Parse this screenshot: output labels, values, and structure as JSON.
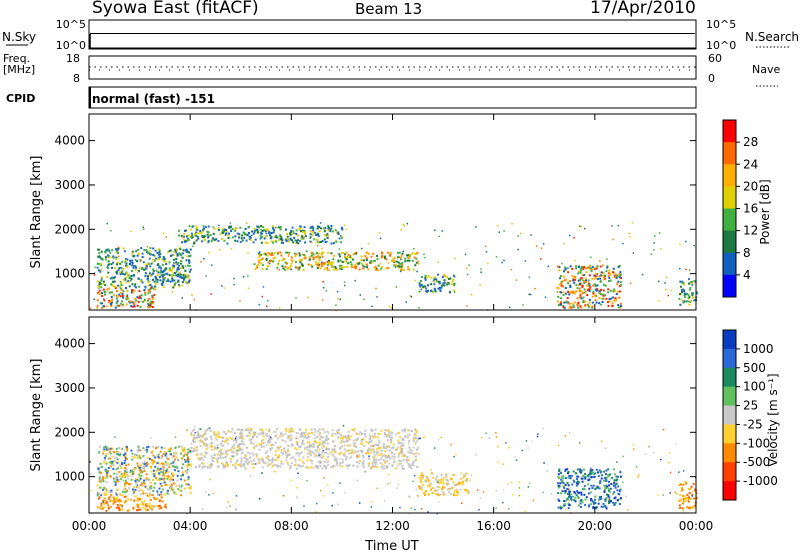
{
  "header": {
    "station": "Syowa East (fitACF)",
    "beam": "Beam 13",
    "date": "17/Apr/2010"
  },
  "strips": {
    "nsky_label": "N.Sky",
    "nsky_ticks": [
      "10^5",
      "10^0"
    ],
    "nsearch_label": "N.Search",
    "nsearch_ticks": [
      "10^5",
      "10^0"
    ],
    "freq_label_1": "Freq.",
    "freq_label_2": "[MHz]",
    "freq_ticks": [
      "18",
      "8"
    ],
    "nave_label": "Nave",
    "nave_ticks": [
      "60",
      "0"
    ],
    "cpid_label": "CPID",
    "cpid_value": "normal (fast) -151"
  },
  "chart_data": [
    {
      "type": "heatmap",
      "parameter": "Power",
      "ylabel": "Slant Range [km]",
      "yticks": [
        "4000",
        "3000",
        "2000",
        "1000"
      ],
      "ylim": [
        180,
        4600
      ],
      "colorbar_label": "Power [dB]",
      "colorbar_ticks": [
        "28",
        "24",
        "20",
        "16",
        "12",
        "8",
        "4"
      ],
      "colorbar_colors": [
        "#ff0000",
        "#ff6a00",
        "#ffb000",
        "#e0d000",
        "#40b040",
        "#1a7a40",
        "#1060c0",
        "#0000ff"
      ],
      "echo_regions": [
        {
          "t": [
            0.3,
            2.6
          ],
          "r": [
            250,
            700
          ],
          "level": "high"
        },
        {
          "t": [
            0.3,
            4.0
          ],
          "r": [
            700,
            1600
          ],
          "level": "mid"
        },
        {
          "t": [
            3.5,
            10.0
          ],
          "r": [
            1700,
            2100
          ],
          "level": "mid"
        },
        {
          "t": [
            6.5,
            13.0
          ],
          "r": [
            1100,
            1500
          ],
          "level": "mid-high"
        },
        {
          "t": [
            13.0,
            14.5
          ],
          "r": [
            600,
            1000
          ],
          "level": "mid"
        },
        {
          "t": [
            18.5,
            21.0
          ],
          "r": [
            250,
            1200
          ],
          "level": "high"
        },
        {
          "t": [
            23.3,
            24.0
          ],
          "r": [
            300,
            900
          ],
          "level": "mid"
        }
      ]
    },
    {
      "type": "heatmap",
      "parameter": "Velocity",
      "ylabel": "Slant Range [km]",
      "xlabel": "Time UT",
      "xticks": [
        "00:00",
        "04:00",
        "08:00",
        "12:00",
        "16:00",
        "20:00",
        "00:00"
      ],
      "yticks": [
        "4000",
        "3000",
        "2000",
        "1000"
      ],
      "ylim": [
        180,
        4600
      ],
      "colorbar_label": "Velocity [m s⁻¹]",
      "colorbar_ticks": [
        "1000",
        "500",
        "100",
        "25",
        "-25",
        "-100",
        "-500",
        "-1000"
      ],
      "colorbar_colors": [
        "#0a3cc0",
        "#2a6ad8",
        "#1a8a60",
        "#60c060",
        "#c8c8c8",
        "#ffd030",
        "#ff8a00",
        "#ff4000",
        "#ff0000"
      ],
      "echo_regions": [
        {
          "t": [
            0.3,
            3.0
          ],
          "r": [
            250,
            600
          ],
          "level": "-500"
        },
        {
          "t": [
            0.3,
            4.0
          ],
          "r": [
            600,
            1700
          ],
          "level": "mixed"
        },
        {
          "t": [
            4.0,
            13.0
          ],
          "r": [
            1200,
            2100
          ],
          "level": "±25"
        },
        {
          "t": [
            13.0,
            15.0
          ],
          "r": [
            600,
            1100
          ],
          "level": "-100"
        },
        {
          "t": [
            18.5,
            21.0
          ],
          "r": [
            300,
            1200
          ],
          "level": "500"
        },
        {
          "t": [
            23.3,
            24.0
          ],
          "r": [
            300,
            900
          ],
          "level": "-500"
        }
      ]
    }
  ]
}
